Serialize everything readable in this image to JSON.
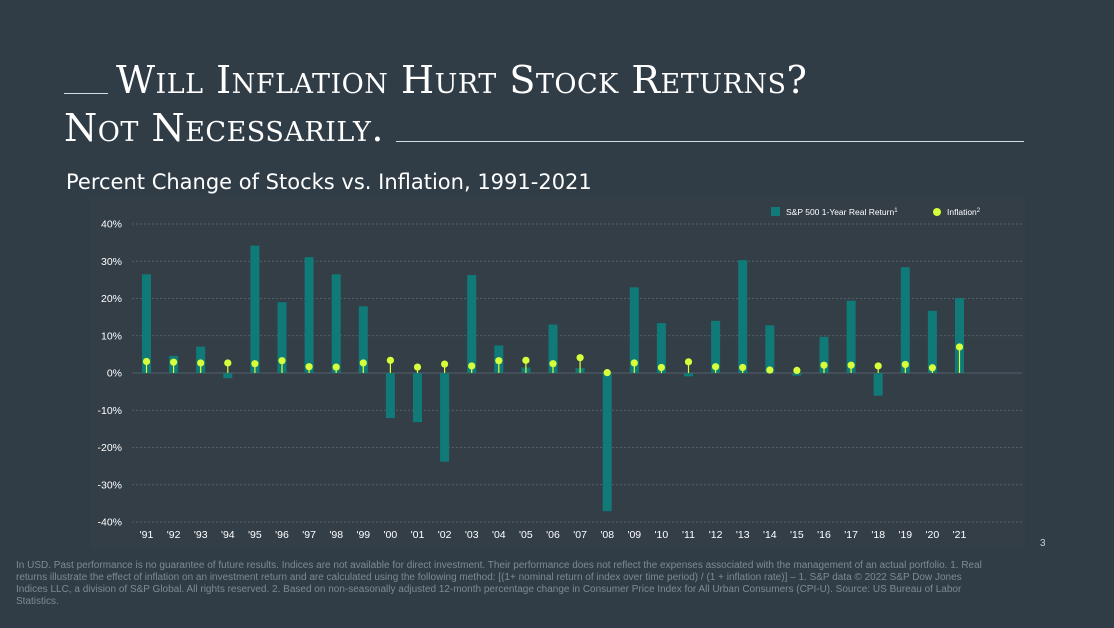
{
  "slide": {
    "title_line1": "Will Inflation Hurt Stock Returns?",
    "title_line2": "Not Necessarily.",
    "subtitle": "Percent Change of Stocks vs. Inflation, 1991-2021",
    "footnote": "In USD. Past performance is no guarantee of future results. Indices are not available for direct investment. Their performance does not reflect the expenses associated with the management of an actual portfolio. 1. Real returns illustrate the effect of inflation on an investment return and are calculated using the following method: [(1+ nominal return of index over time period) / (1 + inflation rate)] – 1. S&P data © 2022 S&P Dow Jones Indices LLC, a division of S&P Global. All rights reserved.  2. Based on non-seasonally adjusted 12-month percentage change in Consumer Price Index for All Urban Consumers (CPI-U). Source: US Bureau of Labor Statistics.",
    "page_number": "3"
  },
  "colors": {
    "background": "#313d46",
    "bar": "#0f7a78",
    "inflation_marker": "#d7ff3a",
    "grid": "#5f6b73",
    "text": "#ffffff"
  },
  "chart_data": {
    "type": "bar",
    "title": "Percent Change of Stocks vs. Inflation, 1991-2021",
    "categories": [
      "'91",
      "'92",
      "'93",
      "'94",
      "'95",
      "'96",
      "'97",
      "'98",
      "'99",
      "'00",
      "'01",
      "'02",
      "'03",
      "'04",
      "'05",
      "'06",
      "'07",
      "'08",
      "'09",
      "'10",
      "'11",
      "'12",
      "'13",
      "'14",
      "'15",
      "'16",
      "'17",
      "'18",
      "'19",
      "'20",
      "'21"
    ],
    "y_ticks": [
      "40%",
      "30%",
      "20%",
      "10%",
      "0%",
      "-10%",
      "-20%",
      "-30%",
      "-40%"
    ],
    "ylim": [
      -40,
      40
    ],
    "grid": true,
    "legend_position": "top-right",
    "series": [
      {
        "name": "S&P 500 1-Year Real Return",
        "name_sup": "1",
        "kind": "bar",
        "values": [
          26.5,
          4.6,
          7.1,
          -1.4,
          34.2,
          19.0,
          31.1,
          26.5,
          17.9,
          -12.1,
          -13.2,
          -23.8,
          26.3,
          7.4,
          1.5,
          13.0,
          1.3,
          -37.1,
          23.0,
          13.4,
          -0.9,
          14.0,
          30.3,
          12.8,
          -0.7,
          9.7,
          19.4,
          -6.1,
          28.4,
          16.7,
          20.1
        ]
      },
      {
        "name": "Inflation",
        "name_sup": "2",
        "kind": "lollipop",
        "values": [
          3.1,
          2.9,
          2.7,
          2.7,
          2.5,
          3.3,
          1.7,
          1.6,
          2.7,
          3.4,
          1.6,
          2.4,
          1.9,
          3.3,
          3.4,
          2.5,
          4.1,
          0.1,
          2.7,
          1.5,
          3.0,
          1.7,
          1.5,
          0.8,
          0.7,
          2.1,
          2.1,
          1.9,
          2.3,
          1.4,
          7.0
        ]
      }
    ]
  }
}
